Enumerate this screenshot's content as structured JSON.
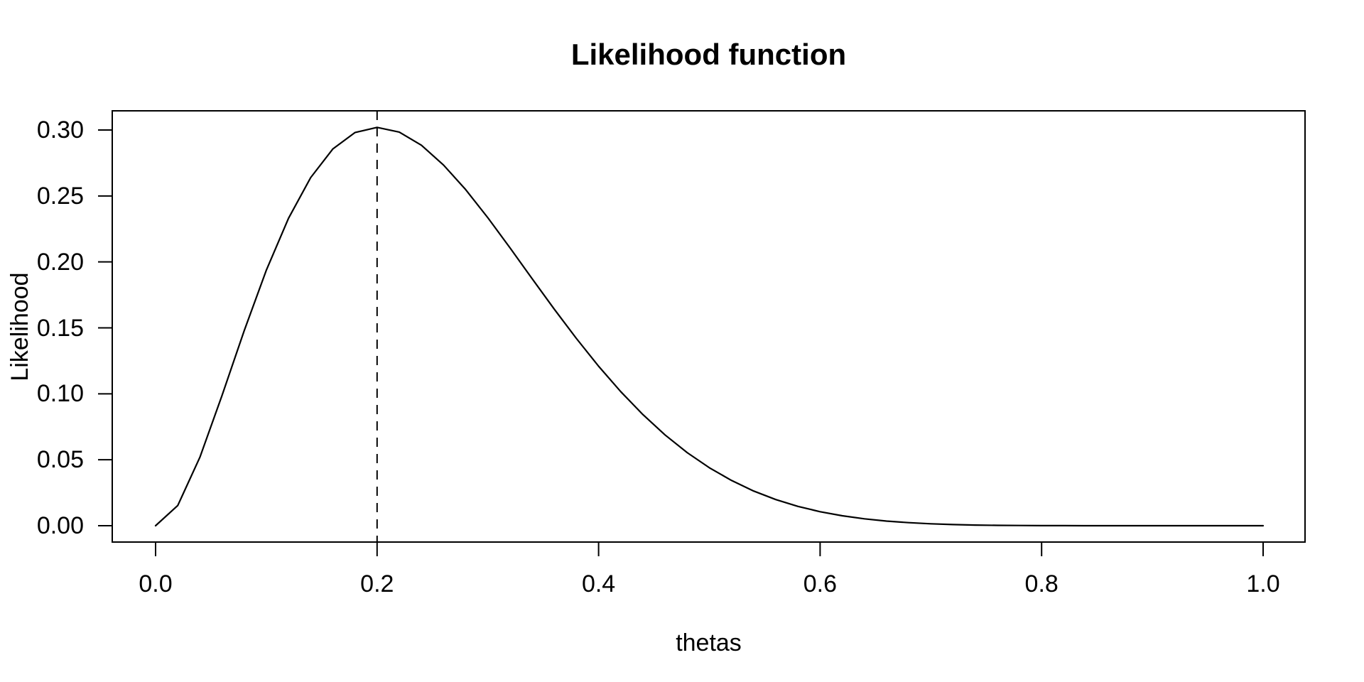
{
  "page": {
    "background": "#ffffff"
  },
  "chart_data": {
    "type": "line",
    "title": "Likelihood function",
    "xlabel": "thetas",
    "ylabel": "Likelihood",
    "xlim": [
      0,
      1
    ],
    "ylim": [
      0,
      0.302
    ],
    "grid": false,
    "legend": "none",
    "frame": "box",
    "background": "#ffffff",
    "line_color": "#000000",
    "x_ticks": {
      "values": [
        0,
        0.2,
        0.4,
        0.6,
        0.8,
        1.0
      ],
      "labels": [
        "0.0",
        "0.2",
        "0.4",
        "0.6",
        "0.8",
        "1.0"
      ]
    },
    "y_ticks": {
      "values": [
        0,
        0.05,
        0.1,
        0.15,
        0.2,
        0.25,
        0.3
      ],
      "labels": [
        "0.00",
        "0.05",
        "0.10",
        "0.15",
        "0.20",
        "0.25",
        "0.30"
      ]
    },
    "annotations": [
      {
        "type": "vline",
        "x": 0.2,
        "line_style": "dashed",
        "color": "#000000"
      }
    ],
    "series": [
      {
        "name": "Likelihood",
        "x": [
          0.0,
          0.02,
          0.04,
          0.06,
          0.08,
          0.1,
          0.12,
          0.14,
          0.16,
          0.18,
          0.2,
          0.22,
          0.24,
          0.26,
          0.28,
          0.3,
          0.32,
          0.34,
          0.36,
          0.38,
          0.4,
          0.42,
          0.44,
          0.46,
          0.48,
          0.5,
          0.52,
          0.54,
          0.56,
          0.58,
          0.6,
          0.62,
          0.64,
          0.66,
          0.68,
          0.7,
          0.72,
          0.74,
          0.76,
          0.78,
          0.8,
          0.82,
          0.84,
          0.86,
          0.88,
          0.9,
          0.92,
          0.94,
          0.96,
          0.98,
          1.0
        ],
        "y": [
          0,
          0.01531,
          0.05194,
          0.09875,
          0.14781,
          0.19371,
          0.23305,
          0.26392,
          0.28555,
          0.29805,
          0.30199,
          0.29843,
          0.2885,
          0.27345,
          0.25479,
          0.23347,
          0.21062,
          0.1872,
          0.16416,
          0.14192,
          0.12093,
          0.10165,
          0.08426,
          0.06885,
          0.05543,
          0.04395,
          0.03429,
          0.02631,
          0.01982,
          0.01466,
          0.01062,
          0.00752,
          0.0052,
          0.0035,
          0.00229,
          0.00145,
          0.00088,
          0.00051,
          0.00029,
          0.00015,
          7e-05,
          3e-05,
          1e-05,
          1e-05,
          0,
          0,
          0,
          0,
          0,
          0,
          0
        ]
      }
    ]
  }
}
